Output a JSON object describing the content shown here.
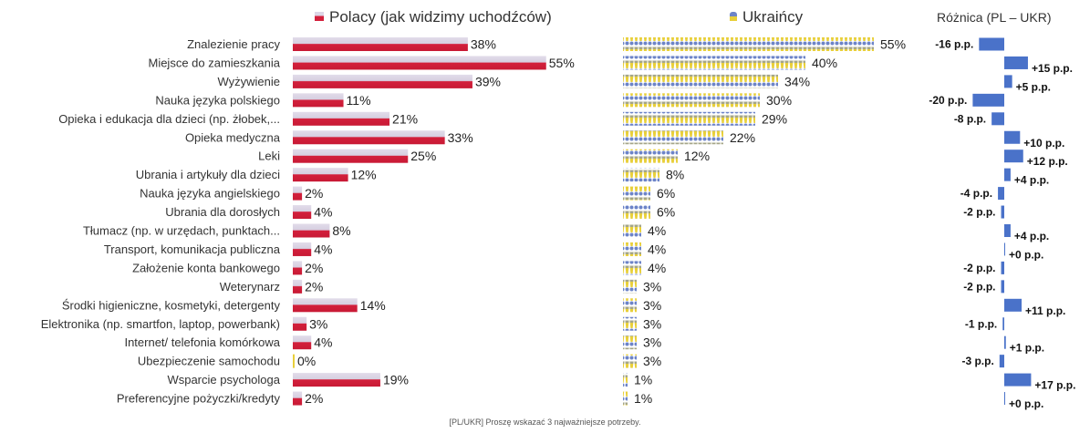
{
  "legend": {
    "polish": "Polacy (jak widzimy uchodźców)",
    "ukrainian": "Ukraińcy",
    "difference": "Różnica (PL – UKR)"
  },
  "footnote": "[PL/UKR] Proszę wskazać 3 najważniejsze potrzeby.",
  "colors": {
    "polish_bar_top": "#ddd6e4",
    "polish_bar_bottom": "#d3203c",
    "ukrainian_head": "#6d84c8",
    "ukrainian_body": "#e8cf3a",
    "difference_bar": "#4a72c9"
  },
  "chart_data": [
    {
      "type": "bar",
      "orientation": "horizontal",
      "categories": [
        "Znalezienie pracy",
        "Miejsce do zamieszkania",
        "Wyżywienie",
        "Nauka języka polskiego",
        "Opieka i edukacja dla dzieci (np. żłobek,...",
        "Opieka medyczna",
        "Leki",
        "Ubrania i artykuły dla dzieci",
        "Nauka języka angielskiego",
        "Ubrania dla dorosłych",
        "Tłumacz (np. w urzędach, punktach...",
        "Transport, komunikacja publiczna",
        "Założenie konta bankowego",
        "Weterynarz",
        "Środki higieniczne, kosmetyki, detergenty",
        "Elektronika (np. smartfon, laptop, powerbank)",
        "Internet/ telefonia komórkowa",
        "Ubezpieczenie samochodu",
        "Wsparcie psychologa",
        "Preferencyjne pożyczki/kredyty"
      ],
      "series": [
        {
          "name": "Polacy (jak widzimy uchodźców)",
          "values": [
            38,
            55,
            39,
            11,
            21,
            33,
            25,
            12,
            2,
            4,
            8,
            4,
            2,
            2,
            14,
            3,
            4,
            0,
            19,
            2
          ],
          "labels": [
            "38%",
            "55%",
            "39%",
            "11%",
            "21%",
            "33%",
            "25%",
            "12%",
            "2%",
            "4%",
            "8%",
            "4%",
            "2%",
            "2%",
            "14%",
            "3%",
            "4%",
            "0%",
            "19%",
            "2%"
          ]
        },
        {
          "name": "Ukraińcy",
          "values": [
            55,
            40,
            34,
            30,
            29,
            22,
            12,
            8,
            6,
            6,
            4,
            4,
            4,
            3,
            3,
            3,
            3,
            3,
            1,
            1
          ],
          "labels": [
            "55%",
            "40%",
            "34%",
            "30%",
            "29%",
            "22%",
            "12%",
            "8%",
            "6%",
            "6%",
            "4%",
            "4%",
            "4%",
            "3%",
            "3%",
            "3%",
            "3%",
            "3%",
            "1%",
            "1%"
          ]
        }
      ],
      "unit": "%"
    },
    {
      "type": "bar",
      "orientation": "horizontal",
      "title": "Różnica (PL – UKR)",
      "values": [
        -16,
        15,
        5,
        -20,
        -8,
        10,
        12,
        4,
        -4,
        -2,
        4,
        0,
        -2,
        -2,
        11,
        -1,
        1,
        -3,
        17,
        0
      ],
      "labels": [
        "-16 p.p.",
        "+15 p.p.",
        "+5 p.p.",
        "-20 p.p.",
        "-8 p.p.",
        "+10 p.p.",
        "+12 p.p.",
        "+4 p.p.",
        "-4 p.p.",
        "-2 p.p.",
        "+4 p.p.",
        "+0 p.p.",
        "-2 p.p.",
        "-2 p.p.",
        "+11 p.p.",
        "-1 p.p.",
        "+1 p.p.",
        "-3 p.p.",
        "+17 p.p.",
        "+0 p.p."
      ]
    }
  ]
}
